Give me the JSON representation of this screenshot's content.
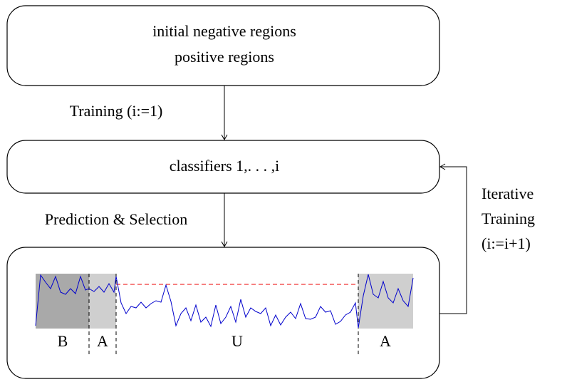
{
  "nodes": [
    {
      "lines": [
        "initial negative regions",
        "positive regions"
      ]
    },
    {
      "label": "classifiers 1,. . . ,i"
    },
    {
      "regions": [
        "B",
        "A",
        "U",
        "A"
      ]
    }
  ],
  "edges": [
    {
      "label": "Training (i:=1)"
    },
    {
      "label": "Prediction & Selection"
    },
    {
      "lines": [
        "Iterative",
        "Training",
        "(i:=i+1)"
      ]
    }
  ]
}
